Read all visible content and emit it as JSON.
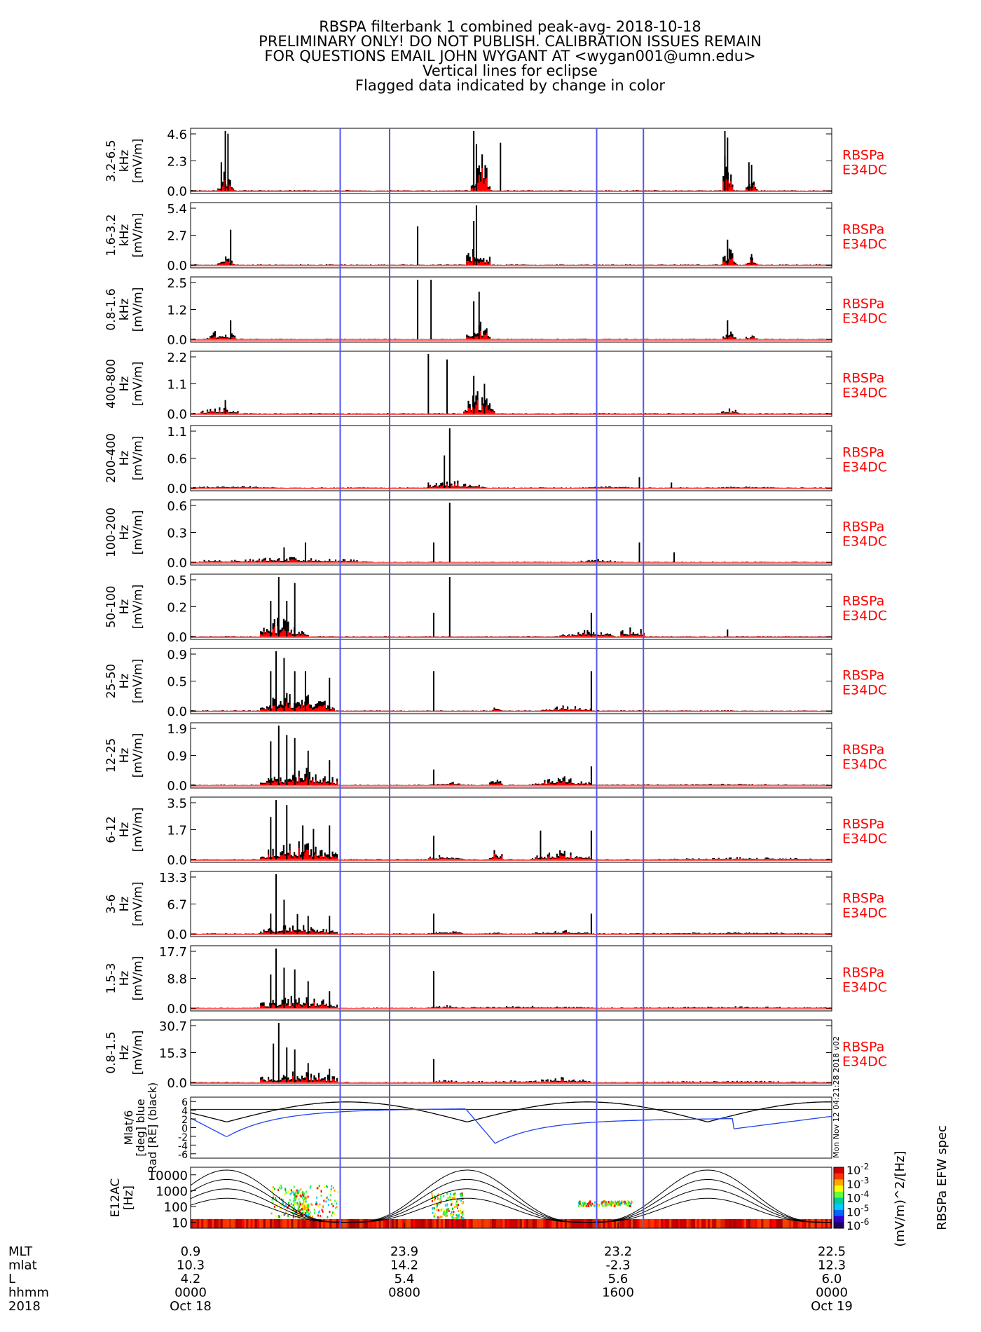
{
  "header": {
    "lines": [
      "RBSPA filterbank 1 combined peak-avg- 2018-10-18",
      "PRELIMINARY ONLY! DO NOT PUBLISH. CALIBRATION ISSUES REMAIN",
      "FOR QUESTIONS EMAIL JOHN WYGANT AT <wygan001@umn.edu>",
      "Vertical lines for eclipse",
      "Flagged data indicated by change in color"
    ]
  },
  "colors": {
    "peak": "#000000",
    "avg": "#ff0000",
    "eclipse": "#5555ee",
    "label": "#ff0000",
    "trace_blue": "#2244ee"
  },
  "panel_right_label": [
    "RBSPa",
    "E34DC"
  ],
  "eclipse_hours": [
    5.6,
    7.45,
    15.2,
    16.95
  ],
  "chart_data": {
    "type": "bar",
    "x_range_hours": [
      0,
      24
    ],
    "panels": [
      {
        "ylabel": [
          "3.2-6.5",
          "kHz",
          "[mV/m]"
        ],
        "ticks": [
          "4.6",
          "2.3",
          "0.0"
        ],
        "ymax": 4.6,
        "peaks": [
          [
            1.3,
            4.6
          ],
          [
            1.4,
            4.4
          ],
          [
            1.15,
            2.2
          ],
          [
            10.6,
            4.6
          ],
          [
            10.7,
            3.6
          ],
          [
            11.6,
            3.7
          ],
          [
            20.0,
            4.6
          ],
          [
            20.1,
            4.1
          ],
          [
            20.9,
            2.2
          ],
          [
            21.0,
            2.0
          ]
        ],
        "humps": [
          [
            1.0,
            1.6,
            1.8
          ],
          [
            10.5,
            11.2,
            3.2
          ],
          [
            19.9,
            20.3,
            4.0
          ],
          [
            20.8,
            21.2,
            1.9
          ]
        ]
      },
      {
        "ylabel": [
          "1.6-3.2",
          "kHz",
          "[mV/m]"
        ],
        "ticks": [
          "5.4",
          "2.7",
          "0.0"
        ],
        "ymax": 5.4,
        "peaks": [
          [
            1.5,
            3.2
          ],
          [
            8.5,
            3.5
          ],
          [
            10.7,
            5.4
          ],
          [
            10.6,
            4.0
          ],
          [
            20.1,
            2.3
          ],
          [
            21.0,
            1.0
          ]
        ],
        "humps": [
          [
            1.0,
            1.6,
            1.0
          ],
          [
            10.3,
            11.2,
            2.3
          ],
          [
            19.9,
            20.4,
            2.3
          ],
          [
            20.8,
            21.2,
            0.9
          ]
        ]
      },
      {
        "ylabel": [
          "0.8-1.6",
          "kHz",
          "[mV/m]"
        ],
        "ticks": [
          "2.5",
          "1.2",
          "0.0"
        ],
        "ymax": 2.5,
        "peaks": [
          [
            8.5,
            2.5
          ],
          [
            9.0,
            2.5
          ],
          [
            10.8,
            2.0
          ],
          [
            10.6,
            1.6
          ],
          [
            1.5,
            0.8
          ],
          [
            20.1,
            0.8
          ]
        ],
        "humps": [
          [
            0.6,
            1.7,
            0.5
          ],
          [
            10.3,
            11.2,
            1.1
          ],
          [
            19.9,
            20.4,
            0.7
          ],
          [
            20.8,
            21.2,
            0.3
          ]
        ]
      },
      {
        "ylabel": [
          "400-800",
          "Hz",
          "[mV/m]"
        ],
        "ticks": [
          "2.2",
          "1.1",
          "0.0"
        ],
        "ymax": 2.2,
        "peaks": [
          [
            8.9,
            2.2
          ],
          [
            9.6,
            2.0
          ],
          [
            10.6,
            1.4
          ],
          [
            11.0,
            1.1
          ],
          [
            1.3,
            0.5
          ]
        ],
        "humps": [
          [
            0.4,
            1.8,
            0.3
          ],
          [
            10.2,
            11.4,
            0.9
          ],
          [
            19.8,
            20.6,
            0.2
          ]
        ]
      },
      {
        "ylabel": [
          "200-400",
          "Hz",
          "[mV/m]"
        ],
        "ticks": [
          "1.1",
          "0.6",
          "0.0"
        ],
        "ymax": 1.1,
        "peaks": [
          [
            9.7,
            1.1
          ],
          [
            9.5,
            0.6
          ],
          [
            8.9,
            0.1
          ],
          [
            16.8,
            0.2
          ],
          [
            18.0,
            0.1
          ]
        ],
        "humps": [
          [
            0.0,
            3.2,
            0.05
          ],
          [
            8.8,
            11.0,
            0.15
          ],
          [
            14.8,
            16.8,
            0.04
          ],
          [
            19.8,
            22.0,
            0.04
          ]
        ]
      },
      {
        "ylabel": [
          "100-200",
          "Hz",
          "[mV/m]"
        ],
        "ticks": [
          "0.6",
          "0.3",
          "0.0"
        ],
        "ymax": 0.6,
        "peaks": [
          [
            9.7,
            0.6
          ],
          [
            9.1,
            0.2
          ],
          [
            3.5,
            0.15
          ],
          [
            4.3,
            0.2
          ],
          [
            16.8,
            0.2
          ],
          [
            18.1,
            0.1
          ]
        ],
        "humps": [
          [
            14.5,
            15.9,
            0.04
          ],
          [
            0.3,
            6.8,
            0.06
          ]
        ]
      },
      {
        "ylabel": [
          "50-100",
          "Hz",
          "[mV/m]"
        ],
        "ticks": [
          "0.5",
          "0.2",
          "0.0"
        ],
        "ymax": 0.5,
        "peaks": [
          [
            3.3,
            0.5
          ],
          [
            3.9,
            0.45
          ],
          [
            3.0,
            0.3
          ],
          [
            3.6,
            0.3
          ],
          [
            9.7,
            0.5
          ],
          [
            9.1,
            0.2
          ],
          [
            15.0,
            0.2
          ],
          [
            20.1,
            0.06
          ]
        ],
        "humps": [
          [
            2.6,
            4.4,
            0.2
          ],
          [
            13.8,
            15.9,
            0.06
          ],
          [
            16.1,
            17.0,
            0.12
          ]
        ]
      },
      {
        "ylabel": [
          "25-50",
          "Hz",
          "[mV/m]"
        ],
        "ticks": [
          "0.9",
          "0.5",
          "0.0"
        ],
        "ymax": 0.9,
        "peaks": [
          [
            3.2,
            0.9
          ],
          [
            3.5,
            0.8
          ],
          [
            3.0,
            0.6
          ],
          [
            3.9,
            0.6
          ],
          [
            5.2,
            0.5
          ],
          [
            9.1,
            0.6
          ],
          [
            15.0,
            0.6
          ],
          [
            4.3,
            0.6
          ]
        ],
        "humps": [
          [
            2.6,
            5.4,
            0.35
          ],
          [
            11.3,
            11.6,
            0.1
          ],
          [
            13.1,
            15.0,
            0.1
          ]
        ]
      },
      {
        "ylabel": [
          "12-25",
          "Hz",
          "[mV/m]"
        ],
        "ticks": [
          "1.9",
          "0.9",
          "0.0"
        ],
        "ymax": 1.9,
        "peaks": [
          [
            3.3,
            1.9
          ],
          [
            3.6,
            1.6
          ],
          [
            3.0,
            1.4
          ],
          [
            3.9,
            1.5
          ],
          [
            4.4,
            1.1
          ],
          [
            5.2,
            0.8
          ],
          [
            9.1,
            0.5
          ],
          [
            15.0,
            0.6
          ]
        ],
        "humps": [
          [
            2.6,
            5.5,
            0.65
          ],
          [
            8.9,
            10.2,
            0.15
          ],
          [
            11.2,
            11.7,
            0.3
          ],
          [
            12.8,
            15.0,
            0.3
          ],
          [
            15.0,
            24.0,
            0.05
          ]
        ]
      },
      {
        "ylabel": [
          "6-12",
          "Hz",
          "[mV/m]"
        ],
        "ticks": [
          "3.5",
          "1.7",
          "0.0"
        ],
        "ymax": 3.5,
        "peaks": [
          [
            3.2,
            3.5
          ],
          [
            3.6,
            3.2
          ],
          [
            3.0,
            2.5
          ],
          [
            4.2,
            2.0
          ],
          [
            4.6,
            1.8
          ],
          [
            5.2,
            2.0
          ],
          [
            9.1,
            1.4
          ],
          [
            13.1,
            1.7
          ],
          [
            15.0,
            1.7
          ]
        ],
        "humps": [
          [
            2.6,
            5.5,
            1.2
          ],
          [
            8.9,
            10.2,
            0.4
          ],
          [
            11.2,
            11.7,
            0.8
          ],
          [
            12.8,
            15.0,
            0.6
          ],
          [
            17.8,
            24.0,
            0.15
          ]
        ]
      },
      {
        "ylabel": [
          "3-6",
          "Hz",
          "[mV/m]"
        ],
        "ticks": [
          "13.3",
          "6.7",
          "0.0"
        ],
        "ymax": 13.3,
        "peaks": [
          [
            3.2,
            13.3
          ],
          [
            3.5,
            7.6
          ],
          [
            3.0,
            4.5
          ],
          [
            4.0,
            4.4
          ],
          [
            4.4,
            4.0
          ],
          [
            5.2,
            4.0
          ],
          [
            9.1,
            4.5
          ],
          [
            15.0,
            4.5
          ]
        ],
        "humps": [
          [
            2.6,
            5.5,
            2.5
          ],
          [
            8.9,
            10.2,
            0.9
          ],
          [
            11.2,
            11.7,
            0.7
          ],
          [
            12.8,
            15.0,
            0.9
          ],
          [
            16.5,
            24.0,
            0.4
          ]
        ]
      },
      {
        "ylabel": [
          "1.5-3",
          "Hz",
          "[mV/m]"
        ],
        "ticks": [
          "17.7",
          "8.8",
          "0.0"
        ],
        "ymax": 17.7,
        "peaks": [
          [
            3.2,
            17.7
          ],
          [
            3.5,
            12.0
          ],
          [
            3.9,
            11.5
          ],
          [
            3.0,
            10.0
          ],
          [
            4.4,
            8.0
          ],
          [
            5.2,
            5.0
          ],
          [
            9.1,
            11.0
          ]
        ],
        "humps": [
          [
            2.6,
            5.5,
            4.5
          ],
          [
            8.9,
            10.2,
            1.0
          ],
          [
            10.2,
            15.0,
            0.8
          ],
          [
            16.5,
            24.0,
            0.6
          ]
        ]
      },
      {
        "ylabel": [
          "0.8-1.5",
          "Hz",
          "[mV/m]"
        ],
        "ticks": [
          "30.7",
          "15.3",
          "0.0"
        ],
        "ymax": 30.7,
        "peaks": [
          [
            3.3,
            30.7
          ],
          [
            3.1,
            20.0
          ],
          [
            3.6,
            18.0
          ],
          [
            3.9,
            17.0
          ],
          [
            4.4,
            10.0
          ],
          [
            5.2,
            7.0
          ],
          [
            9.1,
            12.0
          ]
        ],
        "humps": [
          [
            2.6,
            5.5,
            8.0
          ],
          [
            8.9,
            10.2,
            1.5
          ],
          [
            10.2,
            15.0,
            1.5
          ],
          [
            12.8,
            15.0,
            3.0
          ],
          [
            16.5,
            24.0,
            1.0
          ]
        ]
      }
    ],
    "ephem_panel": {
      "ylabel": [
        "Mlat/6",
        "[deg] blue",
        "Rad [RE] (black)"
      ],
      "ticks": [
        "6",
        "4",
        "2",
        "0",
        "-2",
        "-4",
        "-6"
      ],
      "side_label": "Mon Nov 12 04:21:28 2018 v02"
    },
    "spec_panel": {
      "ylabel": [
        "E12AC",
        "[Hz]"
      ],
      "ticks": [
        "10000",
        "1000",
        "100",
        "10"
      ],
      "side_label": "Mon Nov 12 04:21:28 2018 v02",
      "colorbar": {
        "ticks": [
          "10^-2",
          "10^-3",
          "10^-4",
          "10^-5",
          "10^-6"
        ],
        "label": "(mV/m)^2/[Hz]",
        "title": "RBSPa EFW spec"
      }
    },
    "x_axis": {
      "row_labels": [
        "MLT",
        "mlat",
        "L",
        "hhmm",
        "2018"
      ],
      "columns": [
        {
          "hour": 0,
          "values": [
            "0.9",
            "10.3",
            "4.2",
            "0000",
            "Oct 18"
          ]
        },
        {
          "hour": 8,
          "values": [
            "23.9",
            "14.2",
            "5.4",
            "0800",
            ""
          ]
        },
        {
          "hour": 16,
          "values": [
            "23.2",
            "-2.3",
            "5.6",
            "1600",
            ""
          ]
        },
        {
          "hour": 24,
          "values": [
            "22.5",
            "12.3",
            "6.0",
            "0000",
            "Oct 19"
          ]
        }
      ]
    }
  }
}
